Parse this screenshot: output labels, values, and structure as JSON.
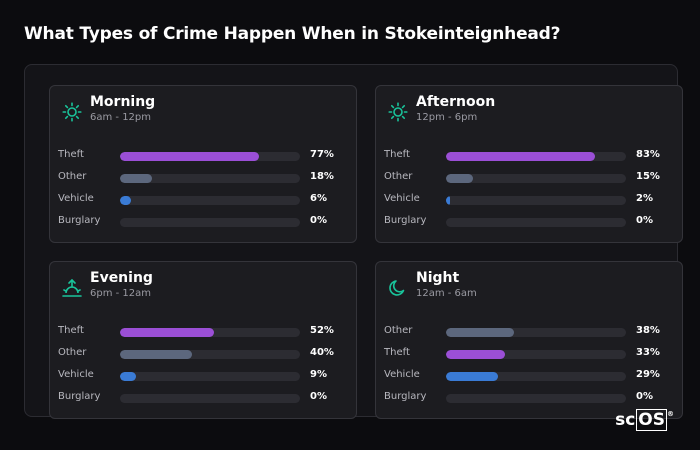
{
  "title": "What Types of Crime Happen When in Stokeinteignhead?",
  "logo": {
    "prefix": "sc",
    "boxed": "OS",
    "mark": "®"
  },
  "colors": {
    "Theft": "#9b4fd6",
    "Other": "#5c677d",
    "Vehicle": "#3a7bd5",
    "Burglary": "#2c2c32",
    "icon": "#19c39a"
  },
  "chart_data": [
    {
      "type": "bar",
      "title": "Morning",
      "subtitle": "6am - 12pm",
      "icon": "sun-icon",
      "categories": [
        "Theft",
        "Other",
        "Vehicle",
        "Burglary"
      ],
      "values": [
        77,
        18,
        6,
        0
      ],
      "labels": [
        "77%",
        "18%",
        "6%",
        "0%"
      ],
      "xlim": [
        0,
        100
      ]
    },
    {
      "type": "bar",
      "title": "Afternoon",
      "subtitle": "12pm - 6pm",
      "icon": "sun-icon",
      "categories": [
        "Theft",
        "Other",
        "Vehicle",
        "Burglary"
      ],
      "values": [
        83,
        15,
        2,
        0
      ],
      "labels": [
        "83%",
        "15%",
        "2%",
        "0%"
      ],
      "xlim": [
        0,
        100
      ]
    },
    {
      "type": "bar",
      "title": "Evening",
      "subtitle": "6pm - 12am",
      "icon": "sunset-icon",
      "categories": [
        "Theft",
        "Other",
        "Vehicle",
        "Burglary"
      ],
      "values": [
        52,
        40,
        9,
        0
      ],
      "labels": [
        "52%",
        "40%",
        "9%",
        "0%"
      ],
      "xlim": [
        0,
        100
      ]
    },
    {
      "type": "bar",
      "title": "Night",
      "subtitle": "12am - 6am",
      "icon": "moon-icon",
      "categories": [
        "Other",
        "Theft",
        "Vehicle",
        "Burglary"
      ],
      "values": [
        38,
        33,
        29,
        0
      ],
      "labels": [
        "38%",
        "33%",
        "29%",
        "0%"
      ],
      "xlim": [
        0,
        100
      ]
    }
  ]
}
